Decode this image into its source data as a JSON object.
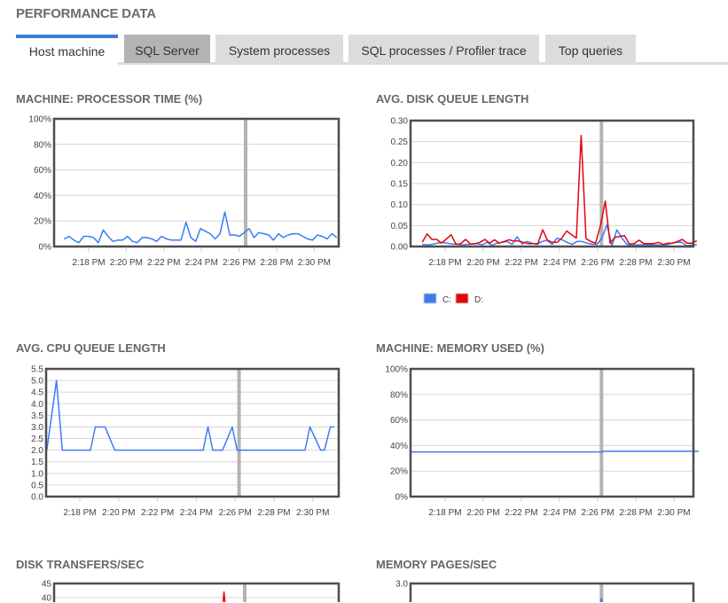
{
  "header": {
    "title": "PERFORMANCE DATA"
  },
  "tabs": [
    {
      "label": "Host machine",
      "state": "active"
    },
    {
      "label": "SQL Server",
      "state": "hover"
    },
    {
      "label": "System processes",
      "state": "normal"
    },
    {
      "label": "SQL processes / Profiler trace",
      "state": "normal"
    },
    {
      "label": "Top queries",
      "state": "normal"
    }
  ],
  "colors": {
    "accent": "#3a7ddb",
    "series_c": "#3b7cf5",
    "series_d": "#e8000b",
    "cursor": "#b3b3b3"
  },
  "chart_data": [
    {
      "type": "line",
      "title": "MACHINE: PROCESSOR TIME (%)",
      "ylim": [
        0,
        100
      ],
      "yticks": [
        "0%",
        "20%",
        "40%",
        "60%",
        "80%",
        "100%"
      ],
      "ytick_values": [
        0,
        20,
        40,
        60,
        80,
        100
      ],
      "xticks": [
        "2:18 PM",
        "2:20 PM",
        "2:22 PM",
        "2:24 PM",
        "2:26 PM",
        "2:28 PM",
        "2:30 PM"
      ],
      "xtick_minutes": [
        18,
        20,
        22,
        24,
        26,
        28,
        30
      ],
      "cursor_minute": 26.35,
      "grid": true,
      "series": [
        {
          "name": "Processor time",
          "color": "#3b7cf5",
          "t_start": 16.7,
          "t_end": 31.2,
          "values": [
            6,
            8,
            5,
            3,
            8,
            8,
            7,
            3,
            13,
            8,
            4,
            5,
            5,
            8,
            4,
            3,
            7,
            7,
            6,
            4,
            8,
            6,
            5,
            5,
            5,
            19,
            7,
            4,
            14,
            12,
            10,
            6,
            10,
            27,
            9,
            9,
            8,
            11,
            14,
            7,
            11,
            10,
            9,
            5,
            10,
            7,
            9,
            10,
            10,
            8,
            6,
            5,
            9,
            8,
            6,
            10,
            7
          ]
        }
      ]
    },
    {
      "type": "line",
      "title": "AVG. DISK QUEUE LENGTH",
      "ylim": [
        0,
        0.3
      ],
      "yticks": [
        "0.00",
        "0.05",
        "0.10",
        "0.15",
        "0.20",
        "0.25",
        "0.30"
      ],
      "ytick_values": [
        0,
        0.05,
        0.1,
        0.15,
        0.2,
        0.25,
        0.3
      ],
      "xticks": [
        "2:18 PM",
        "2:20 PM",
        "2:22 PM",
        "2:24 PM",
        "2:26 PM",
        "2:28 PM",
        "2:30 PM"
      ],
      "xtick_minutes": [
        18,
        20,
        22,
        24,
        26,
        28,
        30
      ],
      "cursor_minute": 26.2,
      "grid": true,
      "legend": [
        {
          "label": "C:",
          "color": "#3b7cf5"
        },
        {
          "label": "D:",
          "color": "#e8000b"
        }
      ],
      "series": [
        {
          "name": "C:",
          "color": "#3b7cf5",
          "t_start": 16.8,
          "t_end": 31.2,
          "values": [
            0.005,
            0.004,
            0.005,
            0.008,
            0.01,
            0.008,
            0.006,
            0.006,
            0.004,
            0.005,
            0.006,
            0.007,
            0.004,
            0.01,
            0.003,
            0.008,
            0.01,
            0.012,
            0.005,
            0.023,
            0.006,
            0.012,
            0.008,
            0.005,
            0.012,
            0.015,
            0.005,
            0.02,
            0.016,
            0.01,
            0.005,
            0.012,
            0.012,
            0.008,
            0.006,
            0.005,
            0.02,
            0.052,
            0.002,
            0.04,
            0.02,
            0.005,
            0.003,
            0.004,
            0.004,
            0.004,
            0.004,
            0.004,
            0.003,
            0.004,
            0.008,
            0.01,
            0.01,
            0.002,
            0.004,
            0.004
          ]
        },
        {
          "name": "D:",
          "color": "#e8000b",
          "t_start": 16.8,
          "t_end": 31.2,
          "values": [
            0.01,
            0.03,
            0.017,
            0.017,
            0.008,
            0.018,
            0.028,
            0.005,
            0.007,
            0.017,
            0.006,
            0.007,
            0.01,
            0.017,
            0.008,
            0.016,
            0.008,
            0.012,
            0.016,
            0.013,
            0.013,
            0.01,
            0.007,
            0.007,
            0.007,
            0.04,
            0.015,
            0.01,
            0.01,
            0.02,
            0.037,
            0.028,
            0.02,
            0.265,
            0.019,
            0.012,
            0.008,
            0.05,
            0.108,
            0.008,
            0.022,
            0.024,
            0.026,
            0.006,
            0.007,
            0.015,
            0.007,
            0.007,
            0.007,
            0.01,
            0.005,
            0.008,
            0.008,
            0.012,
            0.017,
            0.008,
            0.008,
            0.014
          ]
        }
      ]
    },
    {
      "type": "line",
      "title": "AVG. CPU QUEUE LENGTH",
      "ylim": [
        0,
        5.5
      ],
      "yticks": [
        "0.0",
        "0.5",
        "1.0",
        "1.5",
        "2.0",
        "2.5",
        "3.0",
        "3.5",
        "4.0",
        "4.5",
        "5.0",
        "5.5"
      ],
      "ytick_values": [
        0,
        0.5,
        1,
        1.5,
        2,
        2.5,
        3,
        3.5,
        4,
        4.5,
        5,
        5.5
      ],
      "xticks": [
        "2:18 PM",
        "2:20 PM",
        "2:22 PM",
        "2:24 PM",
        "2:26 PM",
        "2:28 PM",
        "2:30 PM"
      ],
      "xtick_minutes": [
        18,
        20,
        22,
        24,
        26,
        28,
        30
      ],
      "cursor_minute": 26.2,
      "grid": true,
      "series": [
        {
          "name": "CPU queue",
          "color": "#3b7cf5",
          "points": [
            [
              16.3,
              2
            ],
            [
              16.8,
              5
            ],
            [
              17.1,
              2
            ],
            [
              18.55,
              2
            ],
            [
              18.8,
              3
            ],
            [
              19.3,
              3
            ],
            [
              19.8,
              2
            ],
            [
              24.35,
              2
            ],
            [
              24.6,
              3
            ],
            [
              24.85,
              2
            ],
            [
              25.35,
              2
            ],
            [
              25.85,
              3
            ],
            [
              26.1,
              2
            ],
            [
              29.6,
              2
            ],
            [
              29.85,
              3
            ],
            [
              30.4,
              2
            ],
            [
              30.6,
              2
            ],
            [
              30.9,
              3
            ],
            [
              31.1,
              3
            ]
          ]
        }
      ]
    },
    {
      "type": "line",
      "title": "MACHINE: MEMORY USED (%)",
      "ylim": [
        0,
        100
      ],
      "yticks": [
        "0%",
        "20%",
        "40%",
        "60%",
        "80%",
        "100%"
      ],
      "ytick_values": [
        0,
        20,
        40,
        60,
        80,
        100
      ],
      "xticks": [
        "2:18 PM",
        "2:20 PM",
        "2:22 PM",
        "2:24 PM",
        "2:26 PM",
        "2:28 PM",
        "2:30 PM"
      ],
      "xtick_minutes": [
        18,
        20,
        22,
        24,
        26,
        28,
        30
      ],
      "cursor_minute": 26.2,
      "grid": true,
      "series": [
        {
          "name": "Memory used",
          "color": "#3b7cf5",
          "points": [
            [
              16.2,
              35
            ],
            [
              26.2,
              35
            ],
            [
              26.3,
              35.5
            ],
            [
              31.3,
              35.5
            ]
          ]
        }
      ]
    },
    {
      "type": "line",
      "title": "DISK TRANSFERS/SEC",
      "ylim": [
        0,
        45
      ],
      "yticks": [
        "40",
        "45"
      ],
      "ytick_values": [
        40,
        45
      ],
      "xticks": [],
      "xtick_minutes": [],
      "cursor_minute": 26.3,
      "grid": true,
      "series": [
        {
          "name": "D:",
          "color": "#e8000b",
          "points": [
            [
              25.15,
              0
            ],
            [
              25.2,
              42
            ],
            [
              25.25,
              0
            ]
          ]
        }
      ]
    },
    {
      "type": "line",
      "title": "MEMORY PAGES/SEC",
      "ylim": [
        0,
        3
      ],
      "yticks": [
        "3.0"
      ],
      "ytick_values": [
        3
      ],
      "xticks": [],
      "xtick_minutes": [],
      "cursor_minute": 26.2,
      "grid": true,
      "series": [
        {
          "name": "Pages",
          "color": "#3b7cf5",
          "points": [
            [
              26.15,
              0
            ],
            [
              26.2,
              2.65
            ],
            [
              26.25,
              0
            ]
          ]
        }
      ]
    }
  ]
}
